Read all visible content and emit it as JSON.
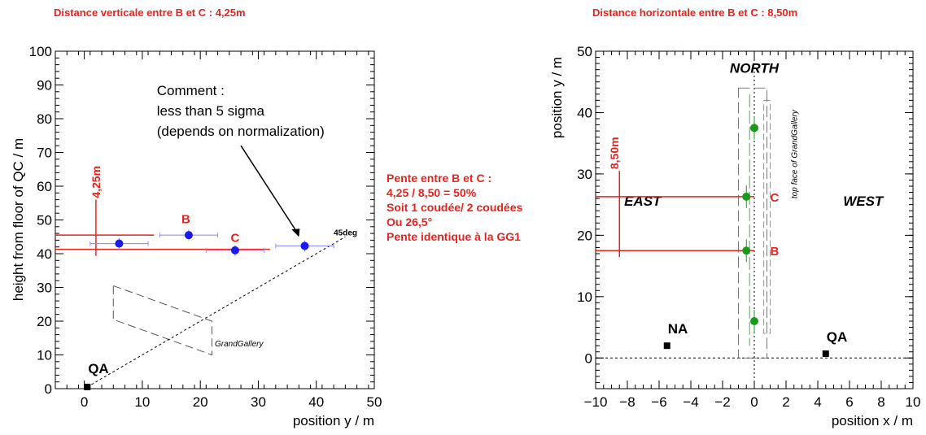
{
  "headlines": {
    "left": "Distance verticale entre B et C : 4,25m",
    "right": "Distance horizontale entre B et C : 8,50m"
  },
  "slope_note": [
    "Pente entre B et C :",
    "4,25 / 8,50 = 50%",
    "Soit 1 coudée/ 2 coudées",
    "Ou 26,5°",
    "Pente identique à la GG1"
  ],
  "colors": {
    "annotation_red": "#e8231e",
    "series_blue": "#1a1aee",
    "series_green": "#1a9a1a"
  },
  "chart_data": [
    {
      "type": "scatter",
      "title": "",
      "xlabel": "position y / m",
      "ylabel": "height from floor of QC / m",
      "xlim": [
        -5,
        50
      ],
      "ylim": [
        0,
        100
      ],
      "xticks": [
        0,
        10,
        20,
        30,
        40,
        50
      ],
      "yticks": [
        0,
        10,
        20,
        30,
        40,
        50,
        60,
        70,
        80,
        90,
        100
      ],
      "series": [
        {
          "points": [
            {
              "x": 6,
              "y": 43,
              "xerr": 5
            },
            {
              "x": 18,
              "y": 45.5,
              "xerr": 5
            },
            {
              "x": 26,
              "y": 41,
              "xerr": 5
            },
            {
              "x": 38,
              "y": 42.3,
              "xerr": 5
            }
          ]
        }
      ],
      "reference_point": {
        "label": "QA",
        "x": 0.5,
        "y": 0.5
      },
      "diagonal_label": "45deg",
      "outline_label": "GrandGallery",
      "point_labels": [
        {
          "text": "B",
          "x": 17.5,
          "y": 49
        },
        {
          "text": "C",
          "x": 26,
          "y": 43.5
        }
      ],
      "red_lines": [
        {
          "x": [
            -5,
            12
          ],
          "y": 45.5
        },
        {
          "x": [
            -5,
            32
          ],
          "y": 41.3
        }
      ],
      "vertical_marker": {
        "label": "4,25m",
        "x": 2,
        "y": [
          41.3,
          56
        ]
      },
      "comment": {
        "lines": [
          "Comment :",
          "less than 5 sigma",
          "(depends on normalization)"
        ],
        "arrow_to": {
          "x": 37,
          "y": 45
        }
      }
    },
    {
      "type": "scatter",
      "title": "",
      "xlabel": "position x / m",
      "ylabel": "position y / m",
      "xlim": [
        -10,
        10
      ],
      "ylim": [
        -5,
        50
      ],
      "xticks": [
        -10,
        -8,
        -6,
        -4,
        -2,
        0,
        2,
        4,
        6,
        8,
        10
      ],
      "yticks": [
        0,
        10,
        20,
        30,
        40,
        50
      ],
      "series": [
        {
          "points": [
            {
              "x": 0,
              "y": 6
            },
            {
              "x": -0.5,
              "y": 17.5
            },
            {
              "x": -0.5,
              "y": 26.3
            },
            {
              "x": 0,
              "y": 37.5
            }
          ]
        }
      ],
      "markers": [
        {
          "label": "NA",
          "x": -5.5,
          "y": 2
        },
        {
          "label": "QA",
          "x": 4.5,
          "y": 0.7
        }
      ],
      "compass_labels": {
        "north": "NORTH",
        "east": "EAST",
        "west": "WEST"
      },
      "outline_label": "top face of GrandGallery",
      "point_labels": [
        {
          "text": "B",
          "x": 1.0,
          "y": 17.5
        },
        {
          "text": "C",
          "x": 1.0,
          "y": 26.3
        }
      ],
      "red_lines": [
        {
          "x": [
            -10,
            0
          ],
          "y": 17.5
        },
        {
          "x": [
            -10,
            0
          ],
          "y": 26.3
        }
      ],
      "vertical_marker": {
        "label": "8,50m",
        "x": -8.5,
        "y": [
          17.5,
          30.5
        ]
      }
    }
  ]
}
